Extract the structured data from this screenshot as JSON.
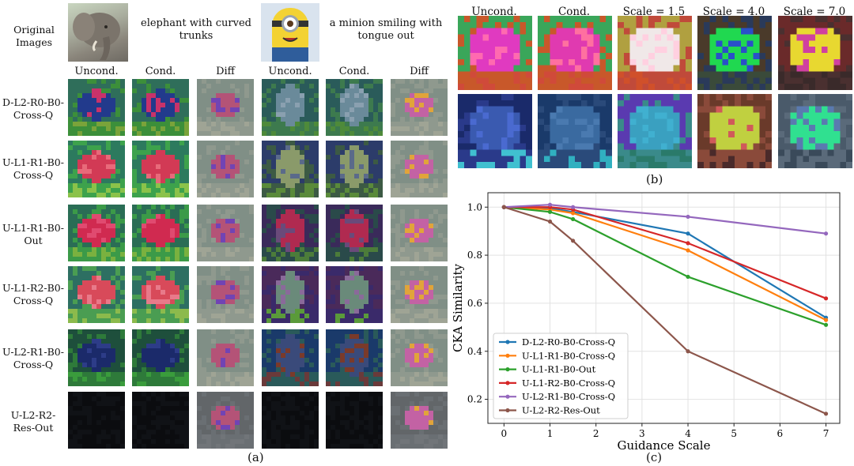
{
  "panel_a": {
    "caption": "(a)",
    "original_images_label": "Original Images",
    "prompt_elephant": "elephant with curved trunks",
    "prompt_minion": "a minion smiling with tongue out",
    "col_headers": [
      "Uncond.",
      "Cond.",
      "Diff",
      "Uncond.",
      "Cond.",
      "Diff"
    ],
    "rows": [
      {
        "label": "D-L2-R0-B0-Cross-Q"
      },
      {
        "label": "U-L1-R1-B0-Cross-Q"
      },
      {
        "label": "U-L1-R1-B0-Out"
      },
      {
        "label": "U-L1-R2-B0-Cross-Q"
      },
      {
        "label": "U-L2-R1-B0-Cross-Q"
      },
      {
        "label": "U-L2-R2-Res-Out"
      }
    ]
  },
  "panel_b": {
    "caption": "(b)",
    "col_headers": [
      "Uncond.",
      "Cond.",
      "Scale = 1.5",
      "Scale = 4.0",
      "Scale = 7.0"
    ]
  },
  "panel_c": {
    "caption": "(c)"
  },
  "chart_data": {
    "type": "line",
    "xlabel": "Guidance Scale",
    "ylabel": "CKA Similarity",
    "xlim": [
      -0.35,
      7.3
    ],
    "ylim": [
      0.1,
      1.06
    ],
    "x_ticks": [
      0,
      1,
      2,
      3,
      4,
      5,
      6,
      7
    ],
    "y_ticks": [
      0.2,
      0.4,
      0.6,
      0.8,
      1.0
    ],
    "x_tick_labels": [
      "0",
      "1",
      "2",
      "3",
      "4",
      "5",
      "6",
      "7"
    ],
    "y_tick_labels": [
      "0.2",
      "0.4",
      "0.6",
      "0.8",
      "1.0"
    ],
    "grid": true,
    "legend_position": "lower-left",
    "x": [
      0,
      1,
      1.5,
      4,
      7
    ],
    "series": [
      {
        "name": "D-L2-R0-B0-Cross-Q",
        "color": "#1f77b4",
        "values": [
          1.0,
          0.995,
          0.98,
          0.89,
          0.54
        ]
      },
      {
        "name": "U-L1-R1-B0-Cross-Q",
        "color": "#ff7f0e",
        "values": [
          1.0,
          0.99,
          0.975,
          0.82,
          0.53
        ]
      },
      {
        "name": "U-L1-R1-B0-Out",
        "color": "#2ca02c",
        "values": [
          1.0,
          0.98,
          0.95,
          0.71,
          0.51
        ]
      },
      {
        "name": "U-L1-R2-B0-Cross-Q",
        "color": "#d62728",
        "values": [
          1.0,
          1.0,
          0.99,
          0.85,
          0.62
        ]
      },
      {
        "name": "U-L2-R1-B0-Cross-Q",
        "color": "#9467bd",
        "values": [
          1.0,
          1.01,
          1.0,
          0.96,
          0.89
        ]
      },
      {
        "name": "U-L2-R2-Res-Out",
        "color": "#8c564b",
        "values": [
          1.0,
          0.94,
          0.86,
          0.4,
          0.14
        ]
      }
    ]
  }
}
